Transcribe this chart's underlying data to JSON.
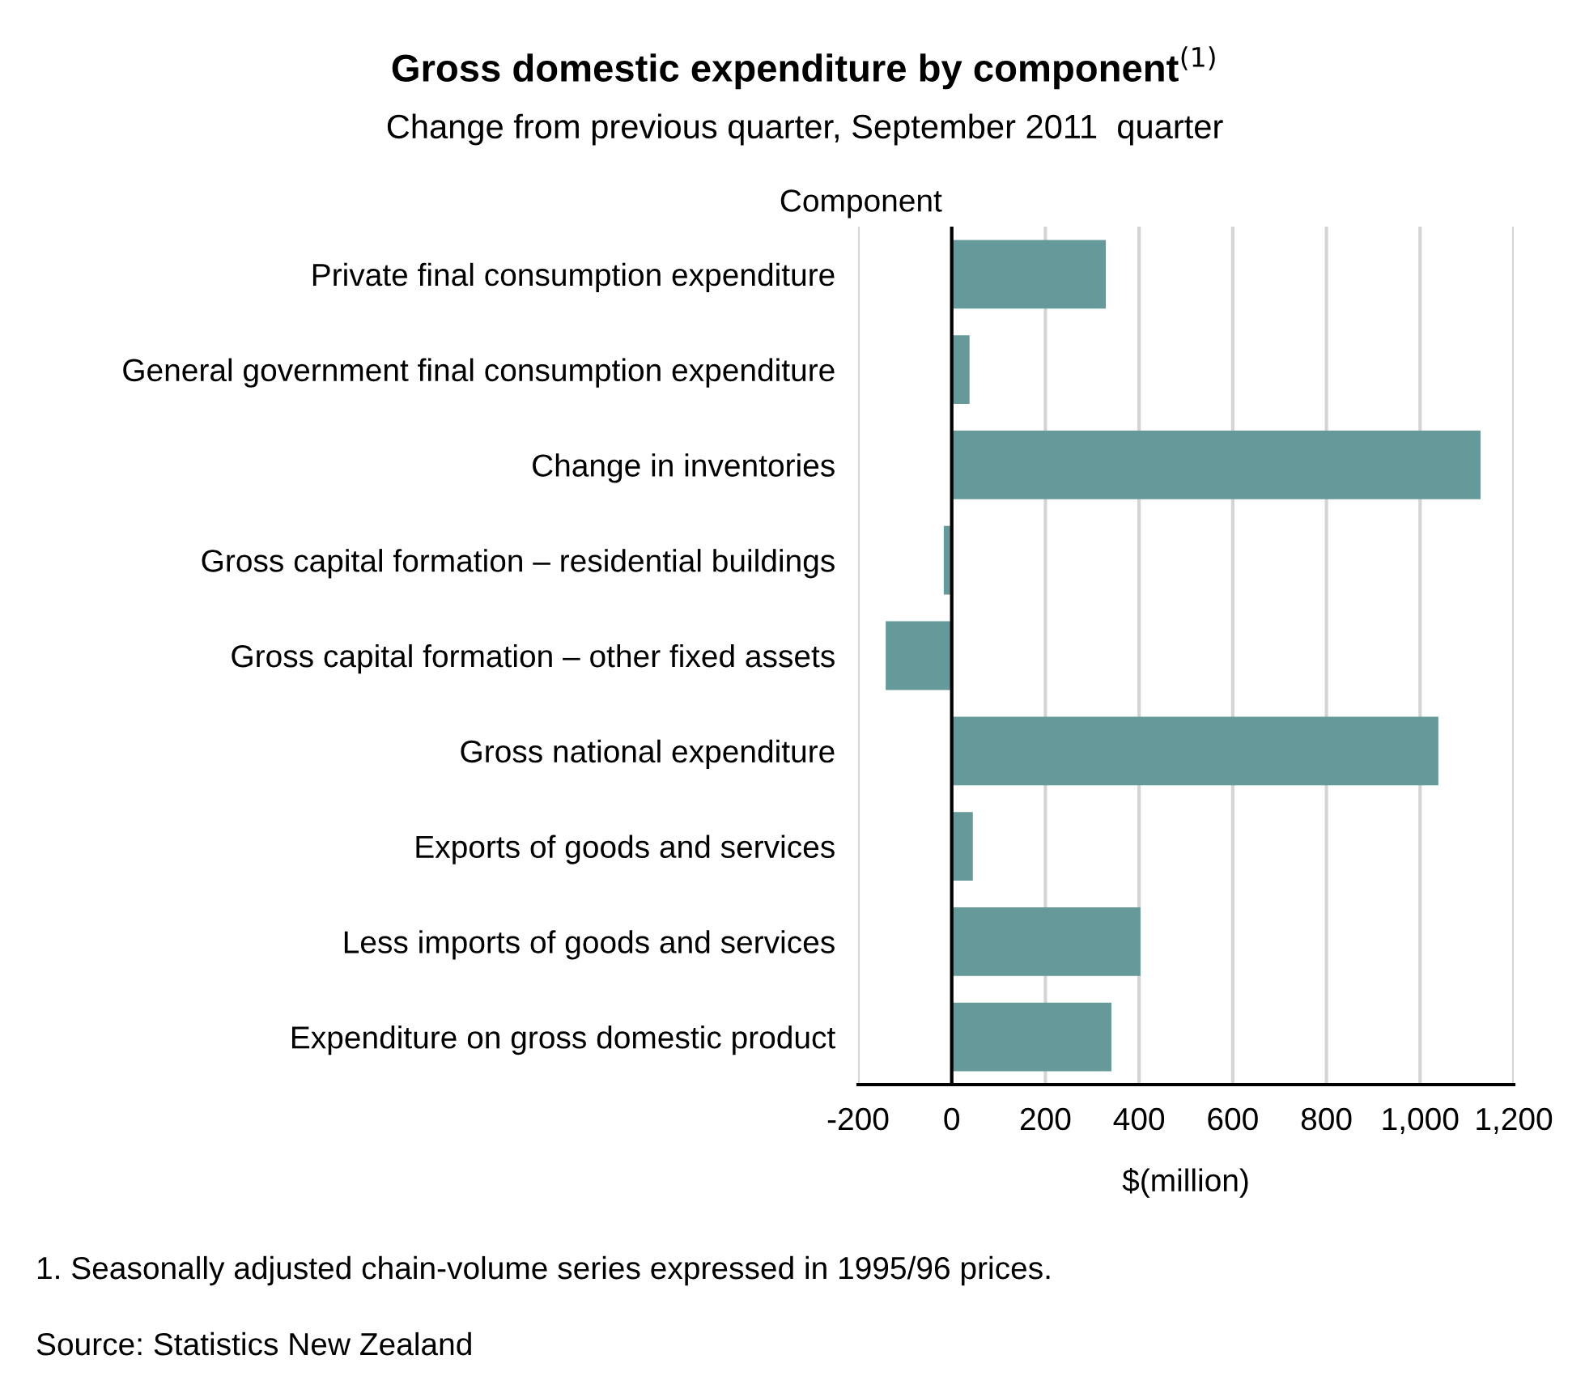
{
  "chart_data": {
    "type": "bar",
    "orientation": "horizontal",
    "title": "Gross domestic expenditure by component$^{(1)}$",
    "subtitle": "Change from previous quarter, September 2011  quarter",
    "ylabel": "Component",
    "xlabel": "$(million)",
    "categories": [
      "Private final consumption expenditure",
      "General government final consumption expenditure",
      "Change in inventories",
      "Gross capital formation – residential buildings",
      "Gross capital formation – other fixed assets",
      "Gross national expenditure",
      "Exports of goods and services",
      "Less imports of goods and services",
      "Expenditure on gross domestic product"
    ],
    "values": [
      329,
      38,
      1129,
      -17,
      -141,
      1039,
      45,
      403,
      341
    ],
    "color": "#669999",
    "xlim": [
      -200,
      1200
    ],
    "xticks": [
      -200,
      0,
      200,
      400,
      600,
      800,
      {
        "value": 1000,
        "label": "1,000"
      },
      {
        "value": 1200,
        "label": "1,200"
      }
    ],
    "grid": "x",
    "ref_lines": [
      {
        "axis": "x",
        "value": 0,
        "label": null,
        "color": "#000000"
      }
    ],
    "annotations": [
      "1. Seasonally adjusted chain-volume series expressed in 1995/96 prices.",
      "Source: Statistics New Zealand"
    ]
  }
}
